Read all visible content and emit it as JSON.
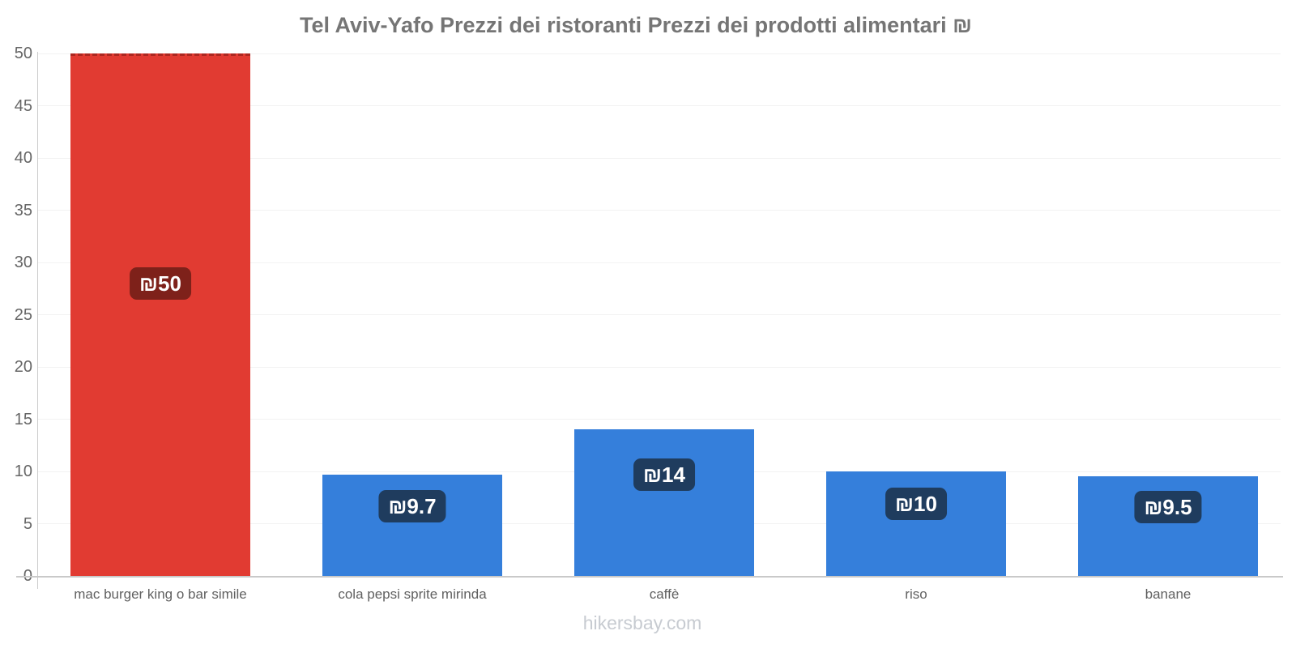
{
  "title": "Tel Aviv-Yafo Prezzi dei ristoranti Prezzi dei prodotti alimentari ₪",
  "footer": "hikersbay.com",
  "chart_data": {
    "type": "bar",
    "title": "Tel Aviv-Yafo Prezzi dei ristoranti Prezzi dei prodotti alimentari ₪",
    "categories": [
      "mac burger king o bar simile",
      "cola pepsi sprite mirinda",
      "caffè",
      "riso",
      "banane"
    ],
    "values": [
      50,
      9.7,
      14,
      10,
      9.5
    ],
    "value_labels": [
      "₪50",
      "₪9.7",
      "₪14",
      "₪10",
      "₪9.5"
    ],
    "currency_symbol": "₪",
    "xlabel": "",
    "ylabel": "",
    "ylim": [
      0,
      50
    ],
    "yticks": [
      0,
      5,
      10,
      15,
      20,
      25,
      30,
      35,
      40,
      45,
      50
    ],
    "grid": true,
    "legend": false,
    "bar_colors": [
      "#e13b32",
      "#357fdb",
      "#357fdb",
      "#357fdb",
      "#357fdb"
    ],
    "value_label_bg": [
      "#7e211a",
      "#1f3c5e",
      "#1f3c5e",
      "#1f3c5e",
      "#1f3c5e"
    ],
    "axis_color": "#cbcbcb",
    "grid_color": "#f2f2f2",
    "tick_label_color": "#666666",
    "category_label_color": "#616161",
    "title_color": "#757575",
    "footer_color": "#c7cbd1"
  }
}
